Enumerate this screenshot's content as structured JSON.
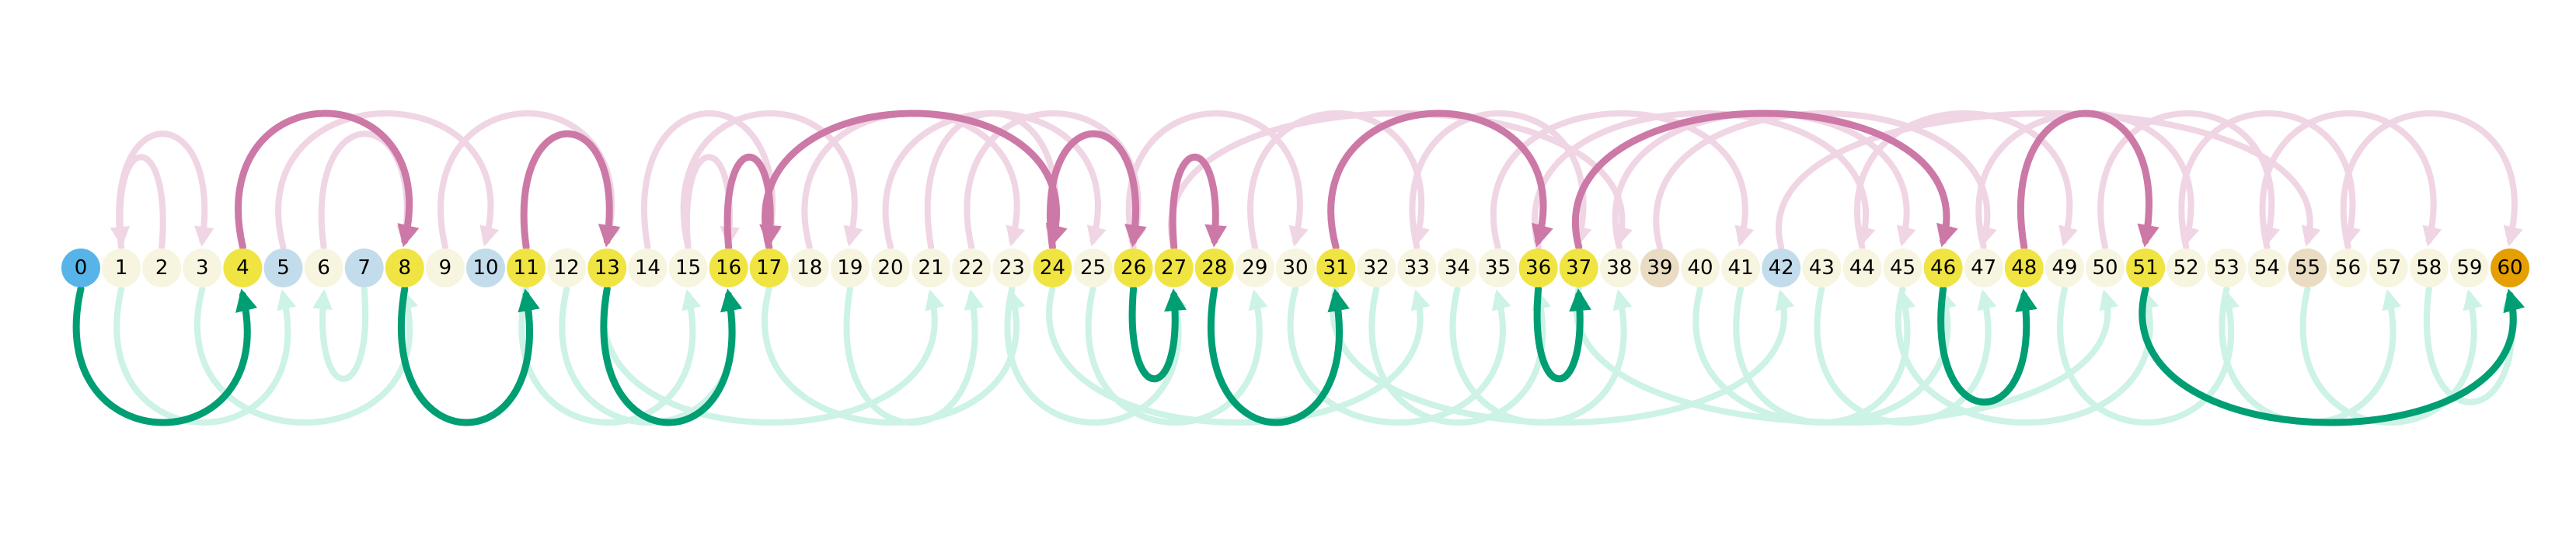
{
  "nodes": [
    "0",
    "1",
    "2",
    "3",
    "4",
    "5",
    "6",
    "7",
    "8",
    "9",
    "10",
    "11",
    "12",
    "13",
    "14",
    "15",
    "16",
    "17",
    "18",
    "19",
    "20",
    "21",
    "22",
    "23",
    "24",
    "25",
    "26",
    "27",
    "28",
    "29",
    "30",
    "31",
    "32",
    "33",
    "34",
    "35",
    "36",
    "37",
    "38",
    "39",
    "40",
    "41",
    "42",
    "43",
    "44",
    "45",
    "46",
    "47",
    "48",
    "49",
    "50",
    "51",
    "52",
    "53",
    "54",
    "55",
    "56",
    "57",
    "58",
    "59",
    "60"
  ],
  "colors": {
    "default": "#f7f5df",
    "path": "#f0e442",
    "start": "#56b4e9",
    "end": "#e69f00",
    "blue": "#c3dceb",
    "tan": "#eadcc3",
    "green_strong": "#009e73",
    "green_faint": "#cdf2e6",
    "pink_strong": "#cc79a7",
    "pink_faint": "#f0d5e4"
  },
  "special_nodes": {
    "start": [
      "0"
    ],
    "end": [
      "60"
    ],
    "path": [
      "4",
      "8",
      "11",
      "13",
      "16",
      "17",
      "24",
      "26",
      "27",
      "28",
      "31",
      "36",
      "37",
      "46",
      "48",
      "51"
    ],
    "blue": [
      "5",
      "7",
      "10",
      "42"
    ],
    "tan": [
      "39",
      "55"
    ]
  },
  "path_arcs": [
    {
      "from": "0",
      "to": "4",
      "side": "below"
    },
    {
      "from": "4",
      "to": "8",
      "side": "above"
    },
    {
      "from": "8",
      "to": "11",
      "side": "below"
    },
    {
      "from": "11",
      "to": "13",
      "side": "above"
    },
    {
      "from": "13",
      "to": "16",
      "side": "below"
    },
    {
      "from": "16",
      "to": "17",
      "side": "above"
    },
    {
      "from": "17",
      "to": "24",
      "side": "above"
    },
    {
      "from": "24",
      "to": "26",
      "side": "above"
    },
    {
      "from": "26",
      "to": "27",
      "side": "below"
    },
    {
      "from": "27",
      "to": "28",
      "side": "above"
    },
    {
      "from": "28",
      "to": "31",
      "side": "below"
    },
    {
      "from": "31",
      "to": "36",
      "side": "above"
    },
    {
      "from": "36",
      "to": "37",
      "side": "below"
    },
    {
      "from": "37",
      "to": "46",
      "side": "above"
    },
    {
      "from": "46",
      "to": "48",
      "side": "below"
    },
    {
      "from": "48",
      "to": "51",
      "side": "above"
    },
    {
      "from": "51",
      "to": "60",
      "side": "below"
    }
  ],
  "faint_arcs": [
    {
      "from": "1",
      "to": "3",
      "side": "above"
    },
    {
      "from": "2",
      "to": "1",
      "side": "above"
    },
    {
      "from": "1",
      "to": "5",
      "side": "below"
    },
    {
      "from": "3",
      "to": "8",
      "side": "below"
    },
    {
      "from": "6",
      "to": "8",
      "side": "above"
    },
    {
      "from": "5",
      "to": "10",
      "side": "above"
    },
    {
      "from": "9",
      "to": "13",
      "side": "above"
    },
    {
      "from": "7",
      "to": "6",
      "side": "below"
    },
    {
      "from": "11",
      "to": "15",
      "side": "below"
    },
    {
      "from": "12",
      "to": "16",
      "side": "below"
    },
    {
      "from": "14",
      "to": "17",
      "side": "above"
    },
    {
      "from": "15",
      "to": "16",
      "side": "above"
    },
    {
      "from": "15",
      "to": "19",
      "side": "above"
    },
    {
      "from": "18",
      "to": "23",
      "side": "above"
    },
    {
      "from": "13",
      "to": "21",
      "side": "below"
    },
    {
      "from": "17",
      "to": "23",
      "side": "below"
    },
    {
      "from": "19",
      "to": "22",
      "side": "below"
    },
    {
      "from": "20",
      "to": "25",
      "side": "above"
    },
    {
      "from": "21",
      "to": "24",
      "side": "above"
    },
    {
      "from": "22",
      "to": "26",
      "side": "above"
    },
    {
      "from": "23",
      "to": "27",
      "side": "below"
    },
    {
      "from": "25",
      "to": "29",
      "side": "below"
    },
    {
      "from": "26",
      "to": "30",
      "side": "above"
    },
    {
      "from": "29",
      "to": "33",
      "side": "above"
    },
    {
      "from": "30",
      "to": "35",
      "side": "below"
    },
    {
      "from": "32",
      "to": "36",
      "side": "below"
    },
    {
      "from": "33",
      "to": "37",
      "side": "above"
    },
    {
      "from": "34",
      "to": "38",
      "side": "below"
    },
    {
      "from": "35",
      "to": "41",
      "side": "above"
    },
    {
      "from": "36",
      "to": "44",
      "side": "above"
    },
    {
      "from": "38",
      "to": "45",
      "side": "above"
    },
    {
      "from": "39",
      "to": "47",
      "side": "above"
    },
    {
      "from": "40",
      "to": "46",
      "side": "below"
    },
    {
      "from": "41",
      "to": "45",
      "side": "below"
    },
    {
      "from": "43",
      "to": "47",
      "side": "below"
    },
    {
      "from": "44",
      "to": "49",
      "side": "above"
    },
    {
      "from": "45",
      "to": "51",
      "side": "below"
    },
    {
      "from": "47",
      "to": "52",
      "side": "above"
    },
    {
      "from": "49",
      "to": "53",
      "side": "below"
    },
    {
      "from": "50",
      "to": "54",
      "side": "above"
    },
    {
      "from": "52",
      "to": "56",
      "side": "above"
    },
    {
      "from": "53",
      "to": "57",
      "side": "below"
    },
    {
      "from": "54",
      "to": "58",
      "side": "above"
    },
    {
      "from": "55",
      "to": "59",
      "side": "below"
    },
    {
      "from": "56",
      "to": "60",
      "side": "above"
    },
    {
      "from": "58",
      "to": "60",
      "side": "below"
    },
    {
      "from": "31",
      "to": "42",
      "side": "below"
    },
    {
      "from": "37",
      "to": "50",
      "side": "below"
    },
    {
      "from": "42",
      "to": "55",
      "side": "above"
    },
    {
      "from": "24",
      "to": "33",
      "side": "below"
    },
    {
      "from": "27",
      "to": "38",
      "side": "above"
    }
  ]
}
